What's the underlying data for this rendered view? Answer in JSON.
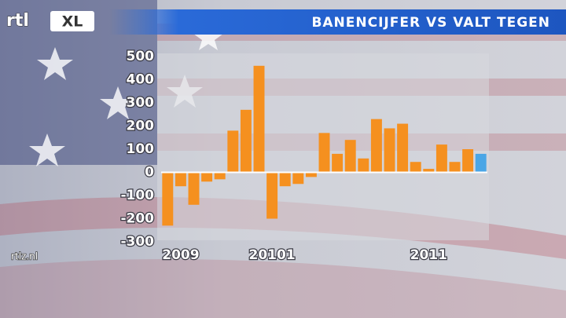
{
  "branding": {
    "logo_main": "rtl",
    "logo_box": "XL",
    "watermark": "rtlz.nl"
  },
  "chart_data": {
    "type": "bar",
    "title": "BANENCIJFER VS VALT TEGEN",
    "categories": [
      null,
      "2009",
      null,
      null,
      null,
      null,
      null,
      null,
      "20101",
      null,
      null,
      null,
      null,
      null,
      null,
      null,
      null,
      null,
      null,
      null,
      "2011",
      null,
      null,
      null,
      null
    ],
    "values": [
      -230,
      -60,
      -140,
      -40,
      -30,
      180,
      270,
      460,
      -200,
      -60,
      -50,
      -20,
      170,
      80,
      140,
      60,
      230,
      190,
      210,
      45,
      15,
      120,
      45,
      100,
      80
    ],
    "colors": [
      "#f5901f",
      "#f5901f",
      "#f5901f",
      "#f5901f",
      "#f5901f",
      "#f5901f",
      "#f5901f",
      "#f5901f",
      "#f5901f",
      "#f5901f",
      "#f5901f",
      "#f5901f",
      "#f5901f",
      "#f5901f",
      "#f5901f",
      "#f5901f",
      "#f5901f",
      "#f5901f",
      "#f5901f",
      "#f5901f",
      "#f5901f",
      "#f5901f",
      "#f5901f",
      "#f5901f",
      "#4aa6e6"
    ],
    "ylim": [
      -300,
      500
    ],
    "yticks": [
      -300,
      -200,
      -100,
      0,
      100,
      200,
      300,
      400,
      500
    ],
    "grid": false
  }
}
